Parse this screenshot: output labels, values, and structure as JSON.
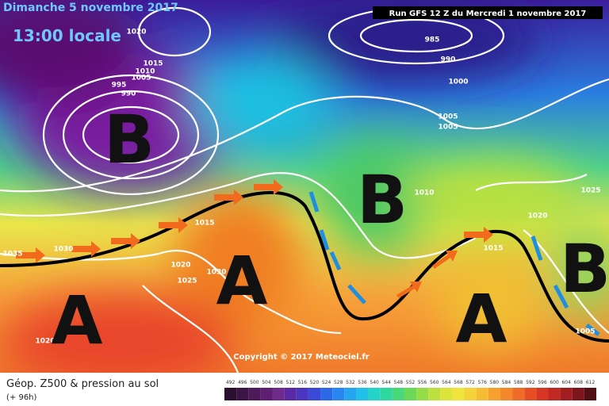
{
  "header": {
    "date": "Dimanche 5 novembre 2017",
    "time": "13:00 locale",
    "run": "Run GFS 12 Z du Mercredi 1 novembre 2017"
  },
  "copyright": "Copyright © 2017 Meteociel.fr",
  "legend": {
    "title": "Géop. Z500 & pression au sol",
    "lead": "(+ 96h)",
    "ticks": [
      492,
      496,
      500,
      504,
      508,
      512,
      516,
      520,
      524,
      528,
      532,
      536,
      540,
      544,
      548,
      552,
      556,
      560,
      564,
      568,
      572,
      576,
      580,
      584,
      588,
      592,
      596,
      600,
      604,
      608,
      612
    ]
  },
  "pressure_systems": [
    "B",
    "B",
    "B",
    "A",
    "A",
    "A"
  ],
  "isobar_labels": [
    1020,
    1015,
    1010,
    1005,
    995,
    990,
    985,
    990,
    1000,
    1005,
    1005,
    1010,
    1025,
    1020,
    1015,
    1035,
    1030,
    1020,
    1025,
    1030,
    1015,
    1020,
    1005
  ]
}
